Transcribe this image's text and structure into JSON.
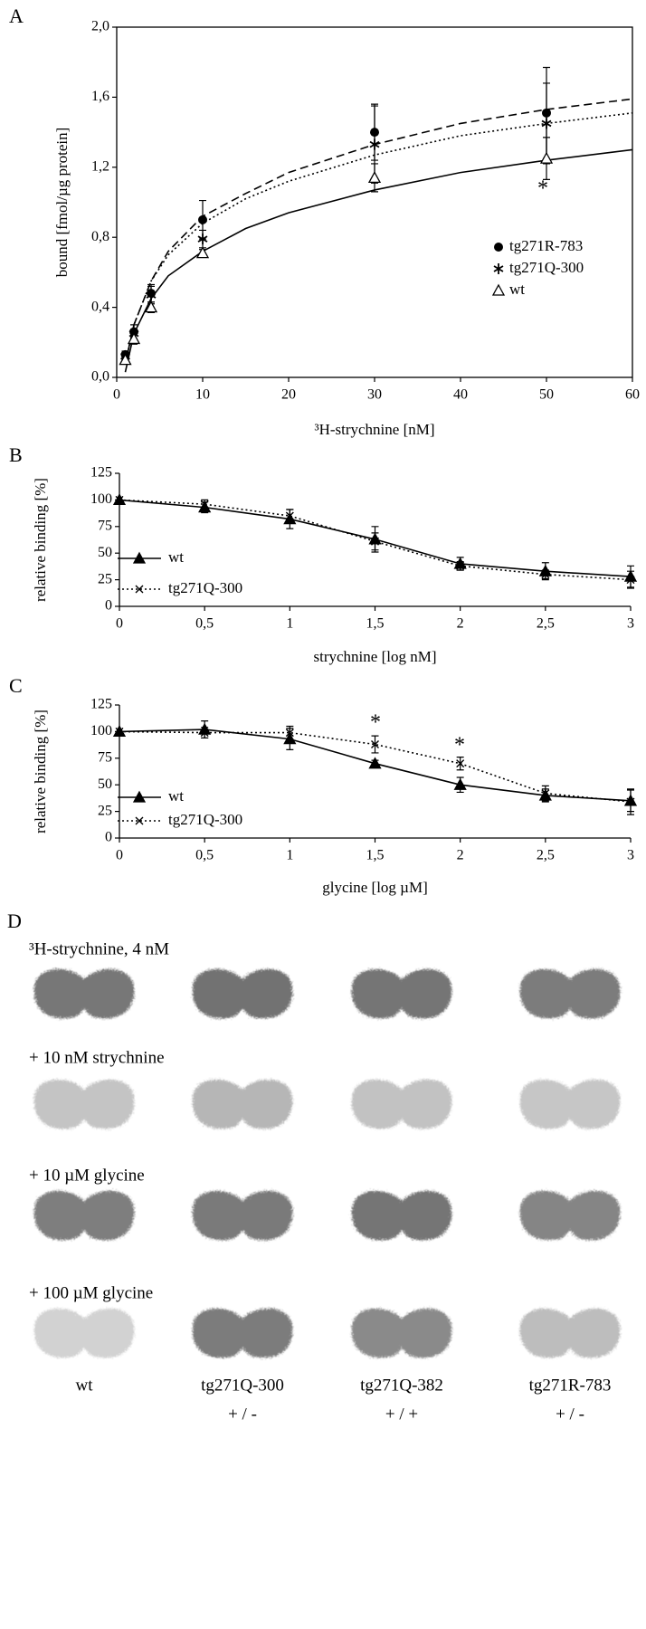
{
  "chart_data": [
    {
      "type": "scatter",
      "label": "A",
      "x_label": "³H-strychnine [nM]",
      "y_label": "bound [fmol/µg protein]",
      "xlim": [
        0,
        60
      ],
      "xticks": [
        0,
        10,
        20,
        30,
        40,
        50,
        60
      ],
      "ylim": [
        0,
        2
      ],
      "yticks": [
        {
          "value": 0,
          "label": "0,0"
        },
        {
          "value": 0.4,
          "label": "0,4"
        },
        {
          "value": 0.8,
          "label": "0,8"
        },
        {
          "value": 1.2,
          "label": "1,2"
        },
        {
          "value": 1.6,
          "label": "1,6"
        },
        {
          "value": 2,
          "label": "2,0"
        }
      ],
      "frame": true,
      "legend": "right",
      "x": [
        1,
        2,
        4,
        10,
        30,
        50
      ],
      "fit_x": [
        1,
        2,
        4,
        6,
        10,
        15,
        20,
        30,
        40,
        50,
        60
      ],
      "series": [
        {
          "name": "tg271R-783",
          "color": "#000000",
          "marker": "circle",
          "dash": "dashed",
          "values": [
            0.13,
            0.26,
            0.48,
            0.9,
            1.4,
            1.51
          ],
          "errors": [
            0.02,
            0.04,
            0.05,
            0.11,
            0.16,
            0.26
          ],
          "fit_values": [
            0.08,
            0.3,
            0.55,
            0.72,
            0.92,
            1.05,
            1.17,
            1.33,
            1.45,
            1.53,
            1.59
          ]
        },
        {
          "name": "tg271Q-300",
          "color": "#000000",
          "marker": "asterisk",
          "dash": "dotted",
          "values": [
            0.12,
            0.25,
            0.47,
            0.79,
            1.33,
            1.45
          ],
          "errors": [
            0.02,
            0.05,
            0.05,
            0.05,
            0.22,
            0.23
          ],
          "fit_values": [
            0.08,
            0.3,
            0.55,
            0.7,
            0.88,
            1.02,
            1.12,
            1.27,
            1.38,
            1.45,
            1.51
          ]
        },
        {
          "name": "wt",
          "color": "#000000",
          "marker": "triangle-open",
          "dash": "solid",
          "values": [
            0.1,
            0.22,
            0.4,
            0.71,
            1.14,
            1.25
          ],
          "errors": [
            0.02,
            0.03,
            0.03,
            0.02,
            0.08,
            0.12
          ],
          "fit_values": [
            0.03,
            0.25,
            0.45,
            0.58,
            0.72,
            0.85,
            0.94,
            1.07,
            1.17,
            1.24,
            1.3
          ]
        }
      ],
      "annotations": [
        "*"
      ]
    },
    {
      "type": "line",
      "label": "B",
      "x_label": "strychnine [log nM]",
      "y_label": "relative binding [%]",
      "xlim": [
        0,
        3
      ],
      "xticks": [
        0,
        {
          "value": 0.5,
          "label": "0,5"
        },
        1,
        {
          "value": 1.5,
          "label": "1,5"
        },
        2,
        {
          "value": 2.5,
          "label": "2,5"
        },
        3
      ],
      "ylim": [
        0,
        125
      ],
      "yticks": [
        0,
        25,
        50,
        75,
        100,
        125
      ],
      "frame": false,
      "legend": "lower left",
      "x": [
        0,
        0.5,
        1,
        1.5,
        2,
        2.5,
        3
      ],
      "series": [
        {
          "name": "wt",
          "color": "#000000",
          "marker": "triangle",
          "dash": "solid",
          "values": [
            100,
            93,
            82,
            63,
            40,
            33,
            28
          ],
          "errors": [
            0,
            5,
            9,
            12,
            6,
            8,
            10
          ]
        },
        {
          "name": "tg271Q-300",
          "color": "#000000",
          "marker": "x",
          "dash": "dotted",
          "values": [
            100,
            96,
            85,
            61,
            38,
            30,
            25
          ],
          "errors": [
            0,
            4,
            6,
            8,
            4,
            4,
            8
          ]
        }
      ]
    },
    {
      "type": "line",
      "label": "C",
      "x_label": "glycine [log µM]",
      "y_label": "relative binding [%]",
      "xlim": [
        0,
        3
      ],
      "xticks": [
        0,
        {
          "value": 0.5,
          "label": "0,5"
        },
        1,
        {
          "value": 1.5,
          "label": "1,5"
        },
        2,
        {
          "value": 2.5,
          "label": "2,5"
        },
        3
      ],
      "ylim": [
        0,
        125
      ],
      "yticks": [
        0,
        25,
        50,
        75,
        100,
        125
      ],
      "frame": false,
      "legend": "lower left",
      "x": [
        0,
        0.5,
        1,
        1.5,
        2,
        2.5,
        3
      ],
      "series": [
        {
          "name": "wt",
          "color": "#000000",
          "marker": "triangle",
          "dash": "solid",
          "values": [
            100,
            102,
            93,
            70,
            50,
            40,
            35
          ],
          "errors": [
            0,
            8,
            10,
            3,
            7,
            6,
            10
          ]
        },
        {
          "name": "tg271Q-300",
          "color": "#000000",
          "marker": "x",
          "dash": "dotted",
          "values": [
            100,
            99,
            99,
            88,
            70,
            42,
            34
          ],
          "errors": [
            0,
            5,
            6,
            8,
            6,
            7,
            12
          ]
        }
      ],
      "annotations": [
        "*",
        "*"
      ]
    }
  ],
  "panel_d": {
    "label": "D",
    "rows": [
      "³H-strychnine, 4 nM",
      "+ 10 nM strychnine",
      "+ 10 µM glycine",
      "+ 100 µM glycine"
    ],
    "columns": [
      {
        "name": "wt"
      },
      {
        "name": "tg271Q-300",
        "genotype": "+ / -"
      },
      {
        "name": "tg271Q-382",
        "genotype": "+ / +"
      },
      {
        "name": "tg271R-783",
        "genotype": "+ / -"
      }
    ]
  }
}
